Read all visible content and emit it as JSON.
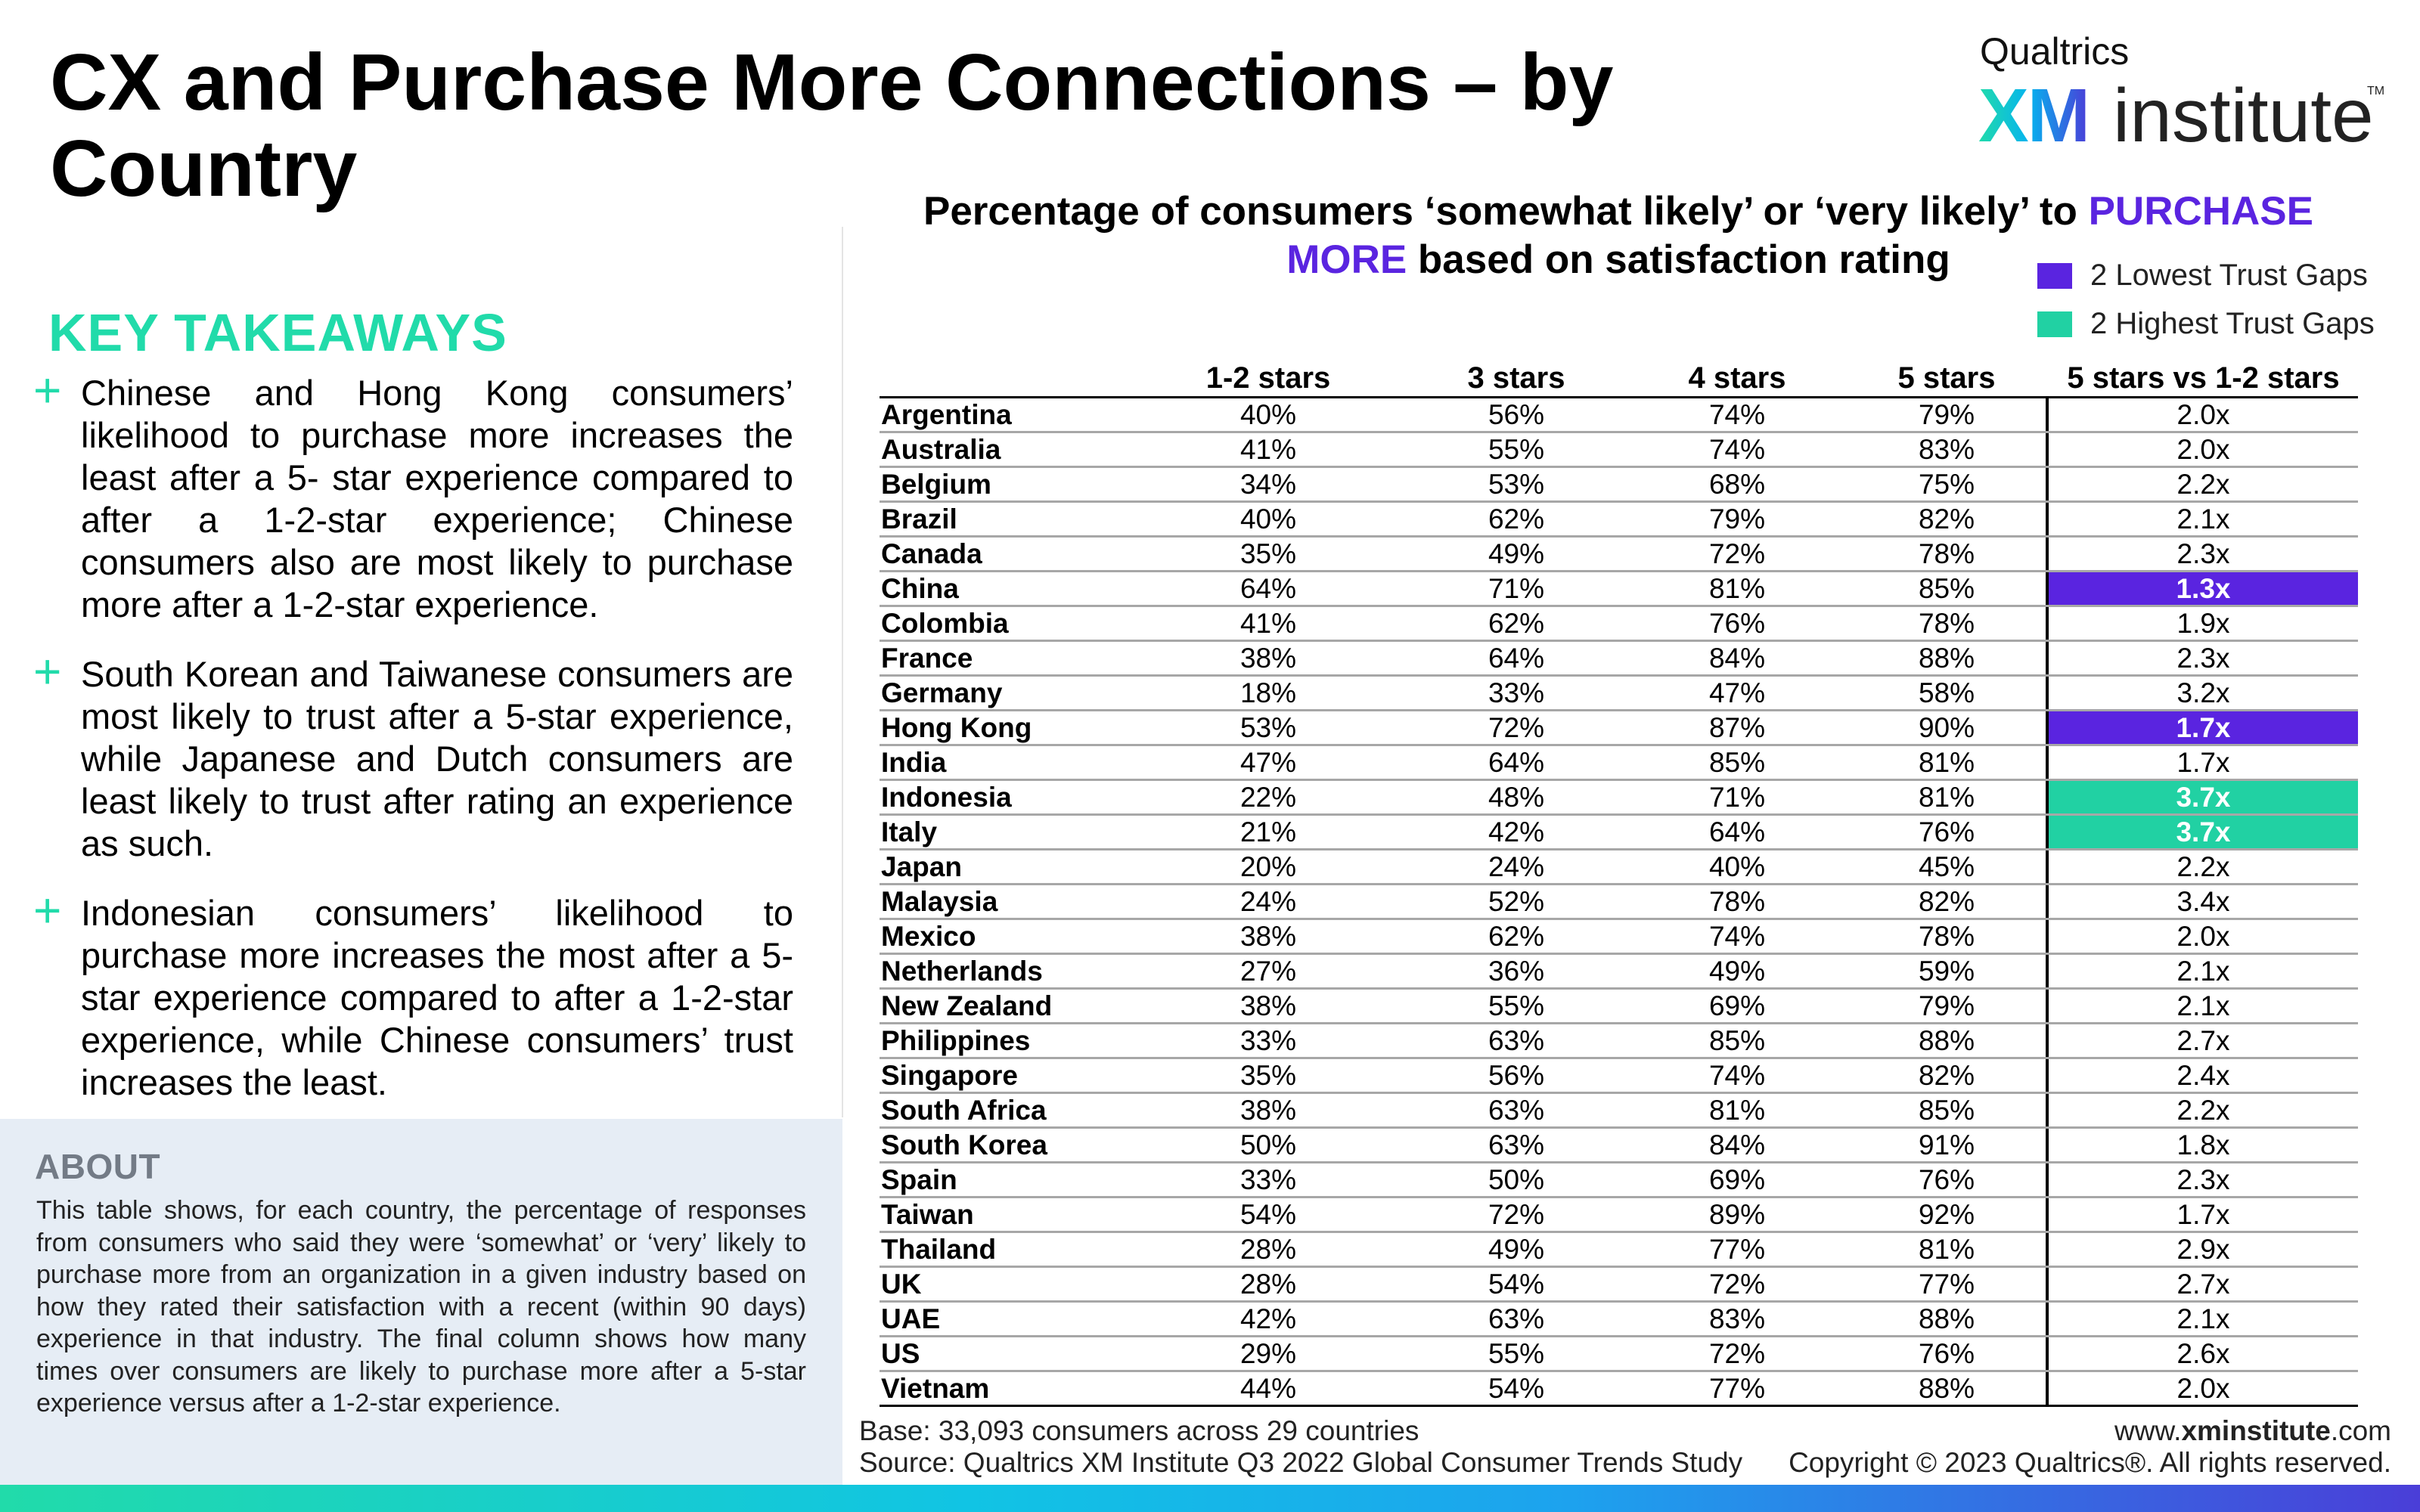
{
  "title": "CX and Purchase More Connections – by Country",
  "logo": {
    "brand": "Qualtrics",
    "xm": "XM",
    "institute": "institute",
    "tm": "TM"
  },
  "key_takeaways": {
    "heading": "KEY TAKEAWAYS",
    "bullet_icon": "+",
    "items": [
      "Chinese and Hong Kong consumers’ likelihood to purchase more increases the least after a 5- star experience compared to after a 1-2-star experience; Chinese consumers also are most likely to purchase more after a 1-2-star experience.",
      "South Korean and Taiwanese consumers are most likely to trust after a 5-star experience, while Japanese and Dutch consumers are least likely to trust after rating an experience as such.",
      "Indonesian consumers’ likelihood to purchase more increases the most after a 5-star experience compared to after a 1-2-star experience, while Chinese consumers’ trust increases the least."
    ]
  },
  "about": {
    "heading": "ABOUT",
    "text": "This table shows, for each country, the percentage of responses from consumers who said they were ‘somewhat’ or ‘very’ likely to purchase more from an organization in a given industry based on how they rated their satisfaction with a recent (within 90 days) experience in that industry. The final column shows how many times over consumers are likely to purchase more after a 5-star experience versus after a 1-2-star experience."
  },
  "chart": {
    "title_part1": "Percentage of consumers ‘somewhat likely’ or ‘very likely’ to ",
    "title_accent1": "PURCHASE",
    "title_accent2": "MORE",
    "title_part2": " based on satisfaction rating"
  },
  "legend": [
    {
      "label": "2 Lowest Trust Gaps",
      "color": "#5a24e0"
    },
    {
      "label": "2 Highest Trust Gaps",
      "color": "#21d1a3"
    }
  ],
  "colors": {
    "accent_purple": "#5a24e0",
    "accent_green": "#21d1a3",
    "heading_green": "#21dbaa"
  },
  "chart_data": {
    "type": "table",
    "columns": [
      "",
      "1-2 stars",
      "3 stars",
      "4 stars",
      "5 stars",
      "5 stars vs 1-2 stars"
    ],
    "rows": [
      {
        "country": "Argentina",
        "values": [
          "40%",
          "56%",
          "74%",
          "79%"
        ],
        "ratio": "2.0x",
        "highlight": ""
      },
      {
        "country": "Australia",
        "values": [
          "41%",
          "55%",
          "74%",
          "83%"
        ],
        "ratio": "2.0x",
        "highlight": ""
      },
      {
        "country": "Belgium",
        "values": [
          "34%",
          "53%",
          "68%",
          "75%"
        ],
        "ratio": "2.2x",
        "highlight": ""
      },
      {
        "country": "Brazil",
        "values": [
          "40%",
          "62%",
          "79%",
          "82%"
        ],
        "ratio": "2.1x",
        "highlight": ""
      },
      {
        "country": "Canada",
        "values": [
          "35%",
          "49%",
          "72%",
          "78%"
        ],
        "ratio": "2.3x",
        "highlight": ""
      },
      {
        "country": "China",
        "values": [
          "64%",
          "71%",
          "81%",
          "85%"
        ],
        "ratio": "1.3x",
        "highlight": "low"
      },
      {
        "country": "Colombia",
        "values": [
          "41%",
          "62%",
          "76%",
          "78%"
        ],
        "ratio": "1.9x",
        "highlight": ""
      },
      {
        "country": "France",
        "values": [
          "38%",
          "64%",
          "84%",
          "88%"
        ],
        "ratio": "2.3x",
        "highlight": ""
      },
      {
        "country": "Germany",
        "values": [
          "18%",
          "33%",
          "47%",
          "58%"
        ],
        "ratio": "3.2x",
        "highlight": ""
      },
      {
        "country": "Hong Kong",
        "values": [
          "53%",
          "72%",
          "87%",
          "90%"
        ],
        "ratio": "1.7x",
        "highlight": "low"
      },
      {
        "country": "India",
        "values": [
          "47%",
          "64%",
          "85%",
          "81%"
        ],
        "ratio": "1.7x",
        "highlight": ""
      },
      {
        "country": "Indonesia",
        "values": [
          "22%",
          "48%",
          "71%",
          "81%"
        ],
        "ratio": "3.7x",
        "highlight": "high"
      },
      {
        "country": "Italy",
        "values": [
          "21%",
          "42%",
          "64%",
          "76%"
        ],
        "ratio": "3.7x",
        "highlight": "high"
      },
      {
        "country": "Japan",
        "values": [
          "20%",
          "24%",
          "40%",
          "45%"
        ],
        "ratio": "2.2x",
        "highlight": ""
      },
      {
        "country": "Malaysia",
        "values": [
          "24%",
          "52%",
          "78%",
          "82%"
        ],
        "ratio": "3.4x",
        "highlight": ""
      },
      {
        "country": "Mexico",
        "values": [
          "38%",
          "62%",
          "74%",
          "78%"
        ],
        "ratio": "2.0x",
        "highlight": ""
      },
      {
        "country": "Netherlands",
        "values": [
          "27%",
          "36%",
          "49%",
          "59%"
        ],
        "ratio": "2.1x",
        "highlight": ""
      },
      {
        "country": "New Zealand",
        "values": [
          "38%",
          "55%",
          "69%",
          "79%"
        ],
        "ratio": "2.1x",
        "highlight": ""
      },
      {
        "country": "Philippines",
        "values": [
          "33%",
          "63%",
          "85%",
          "88%"
        ],
        "ratio": "2.7x",
        "highlight": ""
      },
      {
        "country": "Singapore",
        "values": [
          "35%",
          "56%",
          "74%",
          "82%"
        ],
        "ratio": "2.4x",
        "highlight": ""
      },
      {
        "country": "South Africa",
        "values": [
          "38%",
          "63%",
          "81%",
          "85%"
        ],
        "ratio": "2.2x",
        "highlight": ""
      },
      {
        "country": "South Korea",
        "values": [
          "50%",
          "63%",
          "84%",
          "91%"
        ],
        "ratio": "1.8x",
        "highlight": ""
      },
      {
        "country": "Spain",
        "values": [
          "33%",
          "50%",
          "69%",
          "76%"
        ],
        "ratio": "2.3x",
        "highlight": ""
      },
      {
        "country": "Taiwan",
        "values": [
          "54%",
          "72%",
          "89%",
          "92%"
        ],
        "ratio": "1.7x",
        "highlight": ""
      },
      {
        "country": "Thailand",
        "values": [
          "28%",
          "49%",
          "77%",
          "81%"
        ],
        "ratio": "2.9x",
        "highlight": ""
      },
      {
        "country": "UK",
        "values": [
          "28%",
          "54%",
          "72%",
          "77%"
        ],
        "ratio": "2.7x",
        "highlight": ""
      },
      {
        "country": "UAE",
        "values": [
          "42%",
          "63%",
          "83%",
          "88%"
        ],
        "ratio": "2.1x",
        "highlight": ""
      },
      {
        "country": "US",
        "values": [
          "29%",
          "55%",
          "72%",
          "76%"
        ],
        "ratio": "2.6x",
        "highlight": ""
      },
      {
        "country": "Vietnam",
        "values": [
          "44%",
          "54%",
          "77%",
          "88%"
        ],
        "ratio": "2.0x",
        "highlight": ""
      }
    ]
  },
  "footer": {
    "base": "Base: 33,093 consumers across 29 countries",
    "source": "Source: Qualtrics XM Institute Q3 2022 Global Consumer Trends Study",
    "url_prefix": "www.",
    "url_bold": "xminstitute",
    "url_suffix": ".com",
    "copyright": "Copyright © 2023 Qualtrics®. All rights reserved."
  }
}
